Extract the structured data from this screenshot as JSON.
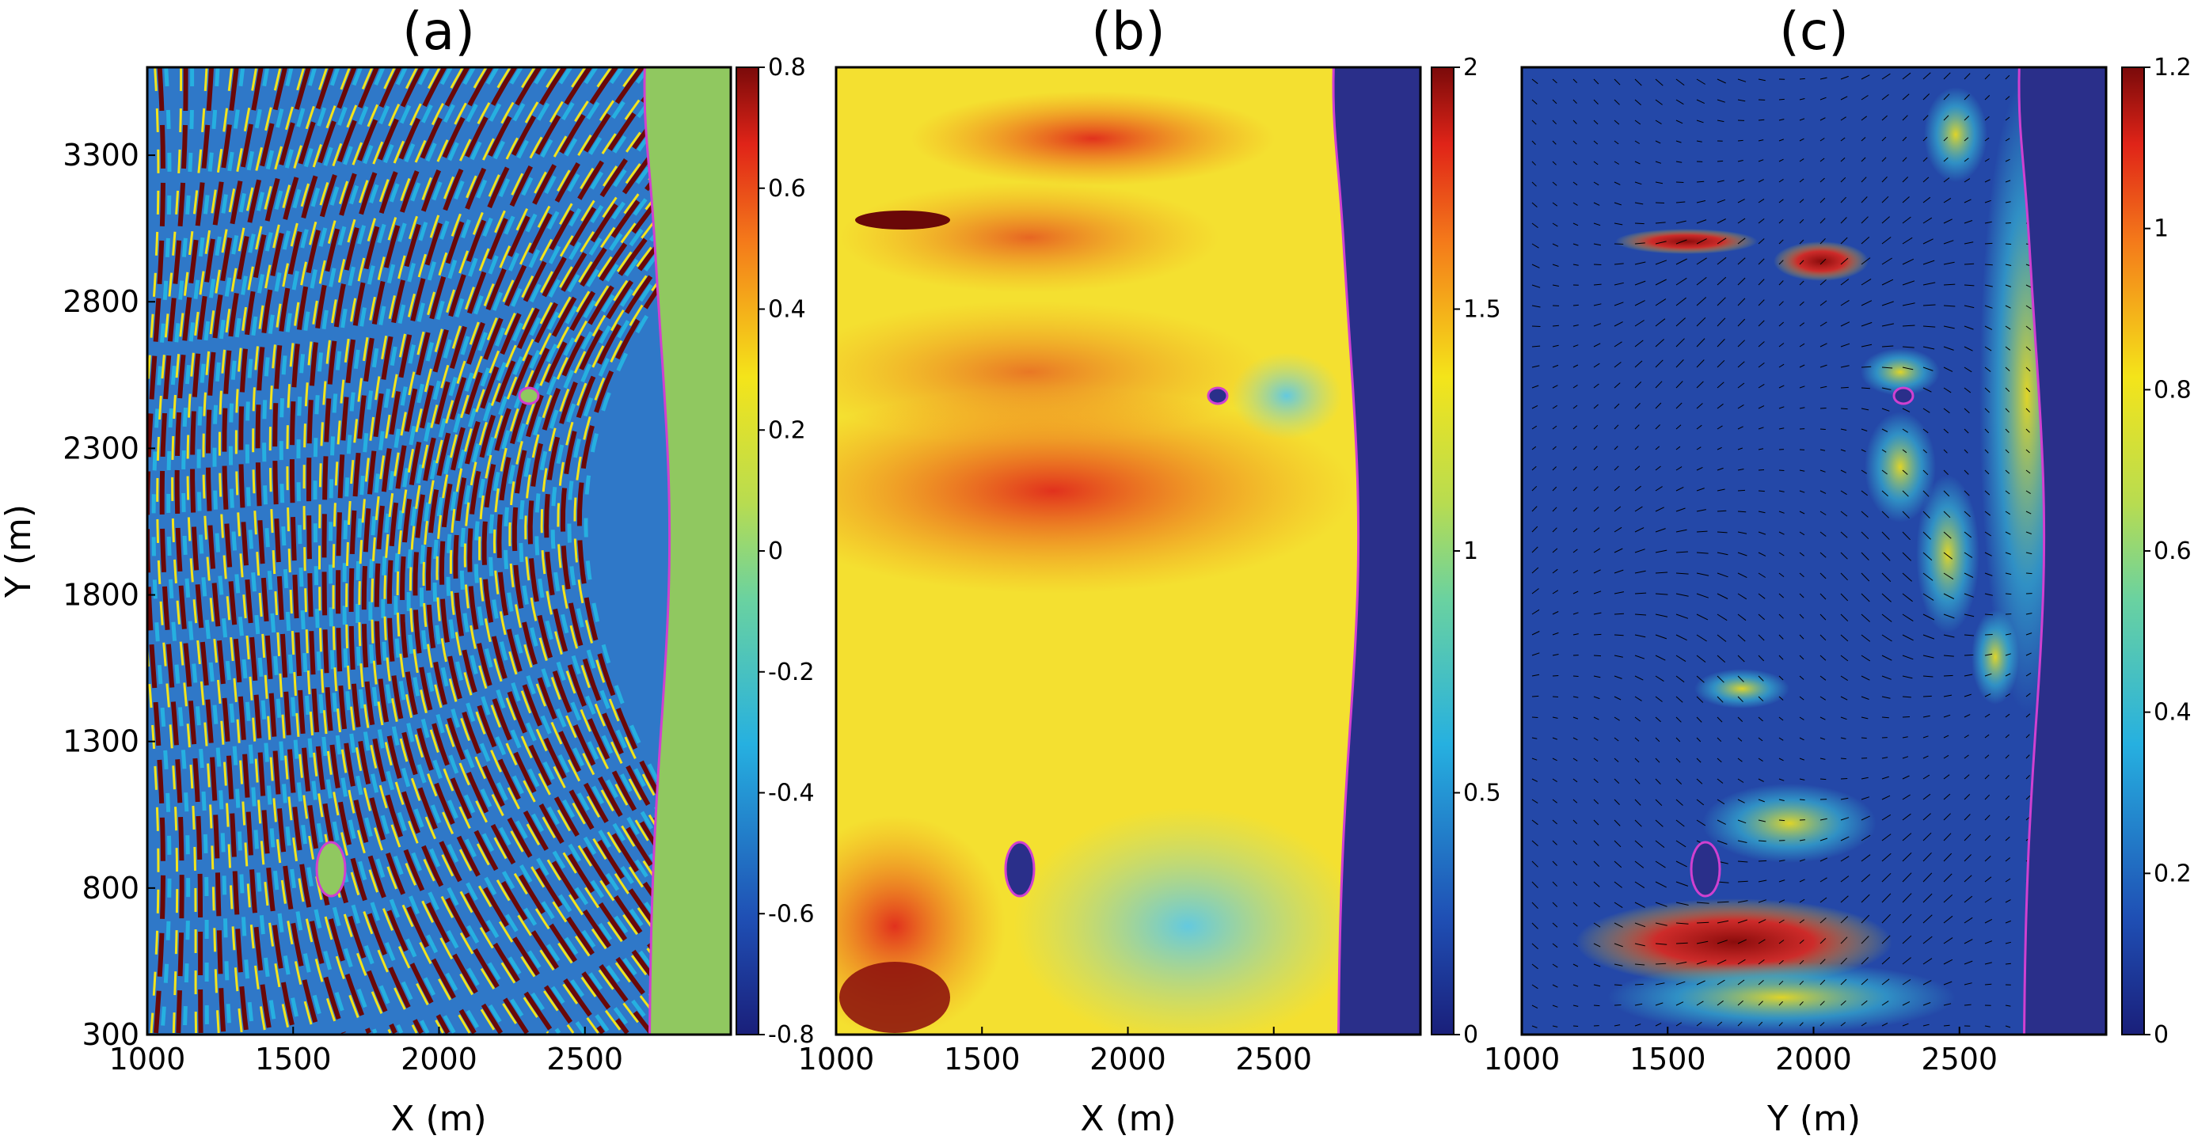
{
  "chart_data": [
    {
      "type": "heatmap",
      "title": "(a)",
      "xlabel": "X (m)",
      "ylabel": "Y (m)",
      "xlim": [
        1000,
        3000
      ],
      "ylim": [
        300,
        3600
      ],
      "xticks": [
        "1000",
        "1500",
        "2000",
        "2500"
      ],
      "yticks": [
        "300",
        "800",
        "1300",
        "1800",
        "2300",
        "2800",
        "3300"
      ],
      "colorbar": {
        "min": -0.8,
        "max": 0.8,
        "ticks": [
          "-0.8",
          "-0.6",
          "-0.4",
          "-0.2",
          "0",
          "0.2",
          "0.4",
          "0.6",
          "0.8"
        ]
      },
      "colormap": "jet",
      "land_color": "#90c860",
      "shoreline_color": "#d040d0"
    },
    {
      "type": "heatmap",
      "title": "(b)",
      "xlabel": "X (m)",
      "ylabel": "",
      "xlim": [
        1000,
        3000
      ],
      "ylim": [
        300,
        3600
      ],
      "xticks": [
        "1000",
        "1500",
        "2000",
        "2500"
      ],
      "colorbar": {
        "min": 0,
        "max": 2,
        "ticks": [
          "0",
          "0.5",
          "1",
          "1.5",
          "2"
        ]
      },
      "colormap": "jet",
      "land_color": "#2a2f8a",
      "shoreline_color": "#d040d0"
    },
    {
      "type": "heatmap",
      "title": "(c)",
      "xlabel": "Y (m)",
      "ylabel": "",
      "xlim": [
        1000,
        3000
      ],
      "ylim": [
        300,
        3600
      ],
      "xticks": [
        "1000",
        "1500",
        "2000",
        "2500"
      ],
      "colorbar": {
        "min": 0,
        "max": 1.2,
        "ticks": [
          "0",
          "0.2",
          "0.4",
          "0.6",
          "0.8",
          "1",
          "1.2"
        ]
      },
      "colormap": "jet",
      "land_color": "#2a2f8a",
      "shoreline_color": "#d040d0",
      "vectors": true
    }
  ]
}
